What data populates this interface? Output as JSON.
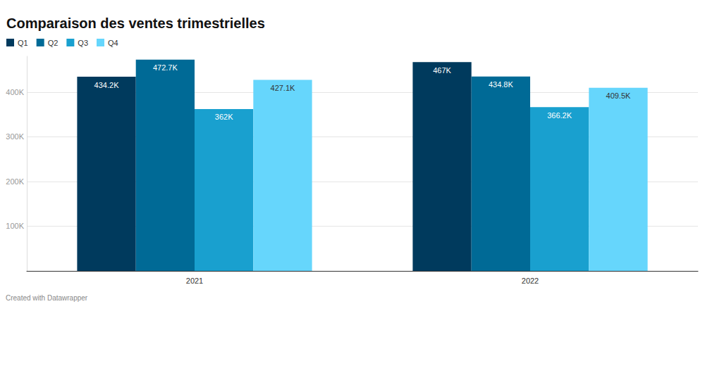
{
  "chart_data": {
    "type": "bar",
    "title": "Comparaison des ventes trimestrielles",
    "source": "Created with Datawrapper",
    "categories": [
      "2021",
      "2022"
    ],
    "series": [
      {
        "name": "Q1",
        "color": "#003a5d",
        "values": [
          434200,
          467000
        ],
        "value_labels": [
          "434.2K",
          "467K"
        ]
      },
      {
        "name": "Q2",
        "color": "#006a96",
        "values": [
          472700,
          434800
        ],
        "value_labels": [
          "472.7K",
          "434.8K"
        ]
      },
      {
        "name": "Q3",
        "color": "#19a0cf",
        "values": [
          362000,
          366200
        ],
        "value_labels": [
          "362K",
          "366.2K"
        ]
      },
      {
        "name": "Q4",
        "color": "#66d6fc",
        "values": [
          427100,
          409500
        ],
        "value_labels": [
          "427.1K",
          "409.5K"
        ]
      }
    ],
    "ylim": [
      0,
      480000
    ],
    "yticks": [
      {
        "value": 100000,
        "label": "100K"
      },
      {
        "value": 200000,
        "label": "200K"
      },
      {
        "value": 300000,
        "label": "300K"
      },
      {
        "value": 400000,
        "label": "400K"
      }
    ],
    "grid": true,
    "legend": "top-left",
    "data_labels": true
  }
}
